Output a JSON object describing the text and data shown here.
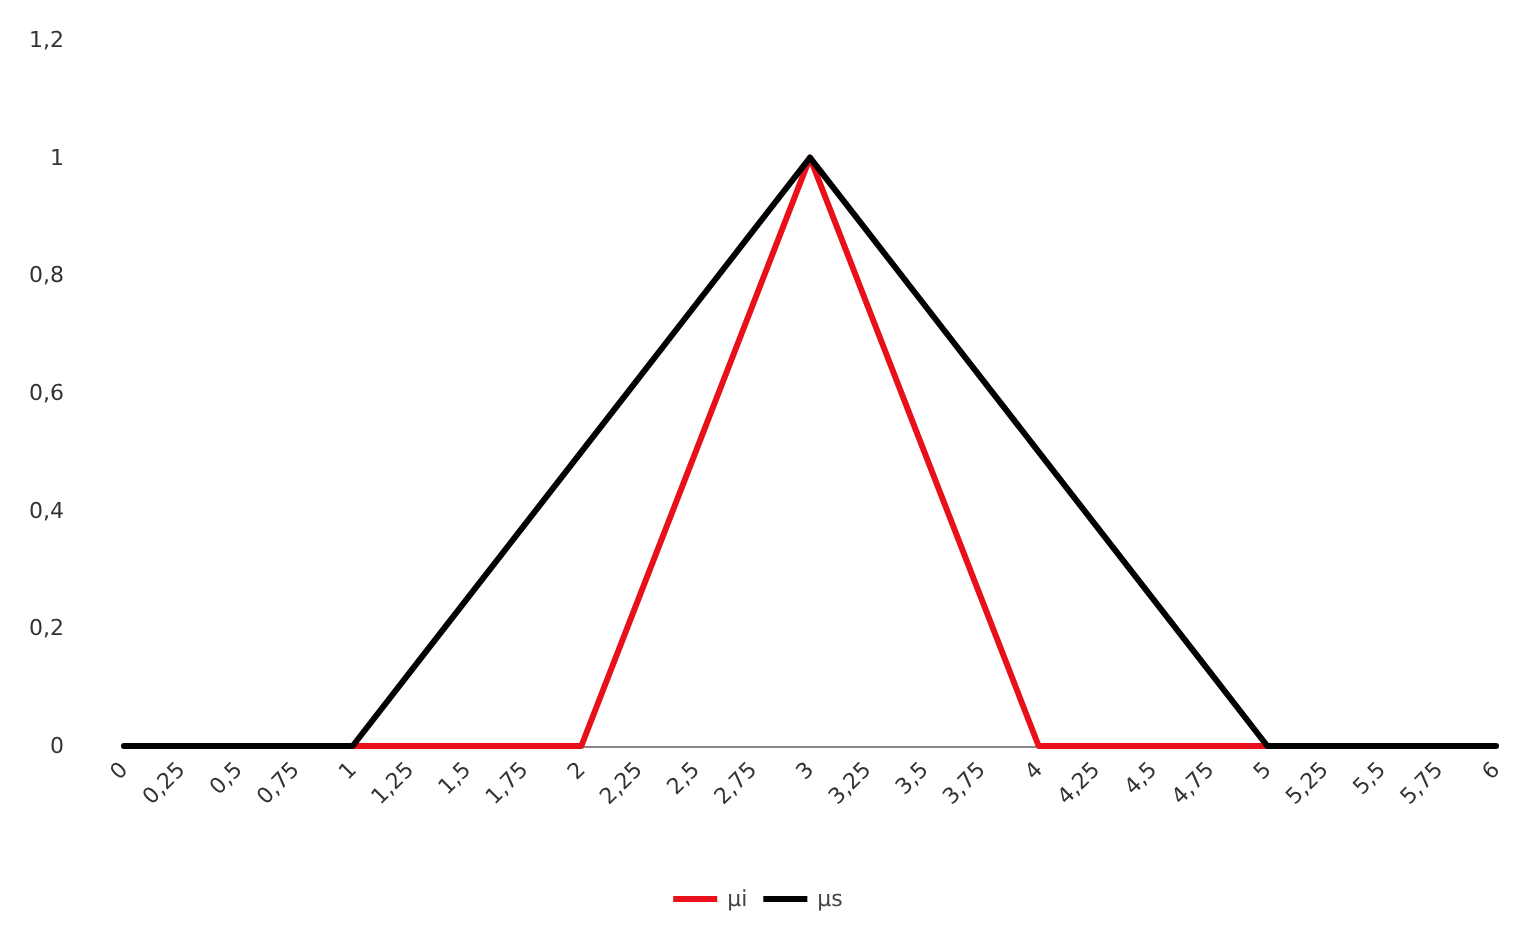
{
  "chart_data": {
    "type": "line",
    "categories": [
      "0",
      "0,25",
      "0,5",
      "0,75",
      "1",
      "1,25",
      "1,5",
      "1,75",
      "2",
      "2,25",
      "2,5",
      "2,75",
      "3",
      "3,25",
      "3,5",
      "3,75",
      "4",
      "4,25",
      "4,5",
      "4,75",
      "5",
      "5,25",
      "5,5",
      "5,75",
      "6"
    ],
    "series": [
      {
        "name": "µi",
        "color": "#e8101a",
        "values": [
          null,
          null,
          null,
          null,
          0,
          0,
          0,
          0,
          0,
          0.25,
          0.5,
          0.75,
          1,
          0.75,
          0.5,
          0.25,
          0,
          0,
          0,
          0,
          0,
          null,
          null,
          null,
          null
        ]
      },
      {
        "name": "µs",
        "color": "#000000",
        "values": [
          0,
          0,
          0,
          0,
          0,
          0.125,
          0.25,
          0.375,
          0.5,
          0.625,
          0.75,
          0.875,
          1,
          0.875,
          0.75,
          0.625,
          0.5,
          0.375,
          0.25,
          0.125,
          0,
          0,
          0,
          0,
          0
        ]
      }
    ],
    "ylim": [
      0,
      1.2
    ],
    "yticks": [
      0,
      {
        "value": 0.2,
        "label": "0,2"
      },
      {
        "value": 0.4,
        "label": "0,4"
      },
      {
        "value": 0.6,
        "label": "0,6"
      },
      {
        "value": 0.8,
        "label": "0,8"
      },
      1,
      {
        "value": 1.2,
        "label": "1,2"
      }
    ],
    "grid": false,
    "legend": "bottom",
    "marker": "none",
    "line_style": "solid"
  }
}
